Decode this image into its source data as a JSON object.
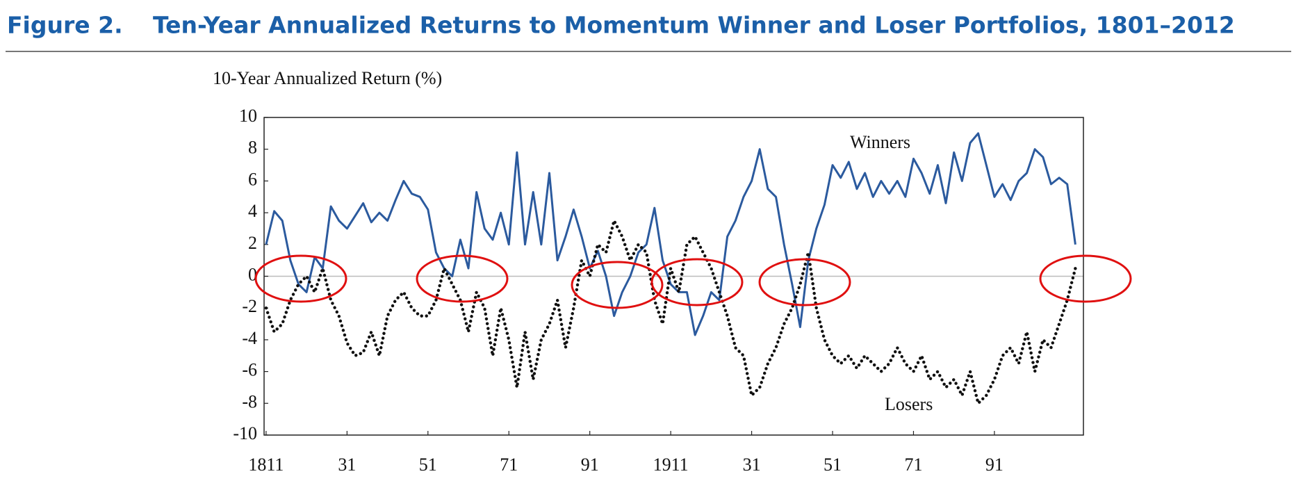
{
  "figure_label": "Figure 2.",
  "chart_data": {
    "type": "line",
    "title": "Ten-Year Annualized Returns to Momentum Winner and Loser Portfolios, 1801–2012",
    "y_label": "10-Year Annualized Return (%)",
    "x": [
      1811,
      1813,
      1815,
      1817,
      1819,
      1821,
      1823,
      1825,
      1827,
      1829,
      1831,
      1833,
      1835,
      1837,
      1839,
      1841,
      1843,
      1845,
      1847,
      1849,
      1851,
      1853,
      1855,
      1857,
      1859,
      1861,
      1863,
      1865,
      1867,
      1869,
      1871,
      1873,
      1875,
      1877,
      1879,
      1881,
      1883,
      1885,
      1887,
      1889,
      1891,
      1893,
      1895,
      1897,
      1899,
      1901,
      1903,
      1905,
      1907,
      1909,
      1911,
      1913,
      1915,
      1917,
      1919,
      1921,
      1923,
      1925,
      1927,
      1929,
      1931,
      1933,
      1935,
      1937,
      1939,
      1941,
      1943,
      1945,
      1947,
      1949,
      1951,
      1953,
      1955,
      1957,
      1959,
      1961,
      1963,
      1965,
      1967,
      1969,
      1971,
      1973,
      1975,
      1977,
      1979,
      1981,
      1983,
      1985,
      1987,
      1989,
      1991,
      1993,
      1995,
      1997,
      1999,
      2001,
      2003,
      2005,
      2007,
      2009,
      2011
    ],
    "series": [
      {
        "name": "Winners",
        "color": "#2b5a9e",
        "style": "solid",
        "values": [
          2.0,
          4.1,
          3.5,
          1.0,
          -0.5,
          -1.0,
          1.2,
          0.5,
          4.4,
          3.5,
          3.0,
          3.8,
          4.6,
          3.4,
          4.0,
          3.5,
          4.8,
          6.0,
          5.2,
          5.0,
          4.2,
          1.5,
          0.5,
          0.0,
          2.3,
          0.5,
          5.3,
          3.0,
          2.3,
          4.0,
          2.0,
          7.8,
          2.0,
          5.3,
          2.0,
          6.5,
          1.0,
          2.5,
          4.2,
          2.5,
          0.5,
          1.6,
          0.0,
          -2.5,
          -1.0,
          0.0,
          1.5,
          2.0,
          4.3,
          1.0,
          -0.5,
          -1.0,
          -1.0,
          -3.7,
          -2.5,
          -1.0,
          -1.5,
          2.5,
          3.5,
          5.0,
          6.0,
          8.0,
          5.5,
          5.0,
          2.0,
          -0.5,
          -3.2,
          1.0,
          3.0,
          4.5,
          7.0,
          6.2,
          7.2,
          5.5,
          6.5,
          5.0,
          6.0,
          5.2,
          6.0,
          5.0,
          7.4,
          6.5,
          5.2,
          7.0,
          4.6,
          7.8,
          6.0,
          8.4,
          9.0,
          7.0,
          5.0,
          5.8,
          4.8,
          6.0,
          6.5,
          8.0,
          7.5,
          5.8,
          6.2,
          5.8,
          2.0
        ]
      },
      {
        "name": "Losers",
        "color": "#111111",
        "style": "dotted",
        "values": [
          -2.0,
          -3.5,
          -3.0,
          -1.5,
          -0.5,
          0.0,
          -1.0,
          0.5,
          -1.5,
          -2.5,
          -4.2,
          -5.0,
          -4.8,
          -3.5,
          -5.0,
          -2.5,
          -1.5,
          -1.0,
          -2.0,
          -2.5,
          -2.5,
          -1.5,
          0.5,
          -0.5,
          -1.5,
          -3.5,
          -1.0,
          -2.0,
          -5.0,
          -2.0,
          -4.0,
          -7.0,
          -3.5,
          -6.5,
          -4.0,
          -3.0,
          -1.5,
          -4.5,
          -2.0,
          1.0,
          0.0,
          2.0,
          1.5,
          3.5,
          2.5,
          1.0,
          2.0,
          1.5,
          -1.5,
          -3.0,
          0.5,
          -1.0,
          2.0,
          2.5,
          1.5,
          0.5,
          -1.0,
          -2.5,
          -4.5,
          -5.0,
          -7.5,
          -7.0,
          -5.5,
          -4.5,
          -3.0,
          -2.0,
          -0.5,
          1.5,
          -2.0,
          -4.0,
          -5.0,
          -5.5,
          -5.0,
          -5.8,
          -5.0,
          -5.5,
          -6.0,
          -5.5,
          -4.5,
          -5.5,
          -6.0,
          -5.0,
          -6.5,
          -6.0,
          -7.0,
          -6.5,
          -7.5,
          -6.0,
          -8.0,
          -7.5,
          -6.5,
          -5.0,
          -4.5,
          -5.5,
          -3.5,
          -6.0,
          -4.0,
          -4.5,
          -3.0,
          -1.5,
          0.5
        ]
      }
    ],
    "xlim": [
      1810.5,
      2013
    ],
    "xticks": [
      1811,
      {
        "value": 1831,
        "label": "31"
      },
      {
        "value": 1851,
        "label": "51"
      },
      {
        "value": 1871,
        "label": "71"
      },
      {
        "value": 1891,
        "label": "91"
      },
      1911,
      {
        "value": 1931,
        "label": "31"
      },
      {
        "value": 1951,
        "label": "51"
      },
      {
        "value": 1971,
        "label": "71"
      },
      {
        "value": 1991,
        "label": "91"
      }
    ],
    "ylim": [
      -10,
      10
    ],
    "yticks": [
      {
        "value": 10,
        "label": "10"
      },
      8,
      6,
      4,
      2,
      0,
      -2,
      -4,
      -6,
      -8,
      -10
    ],
    "zero_line": true
  }
}
